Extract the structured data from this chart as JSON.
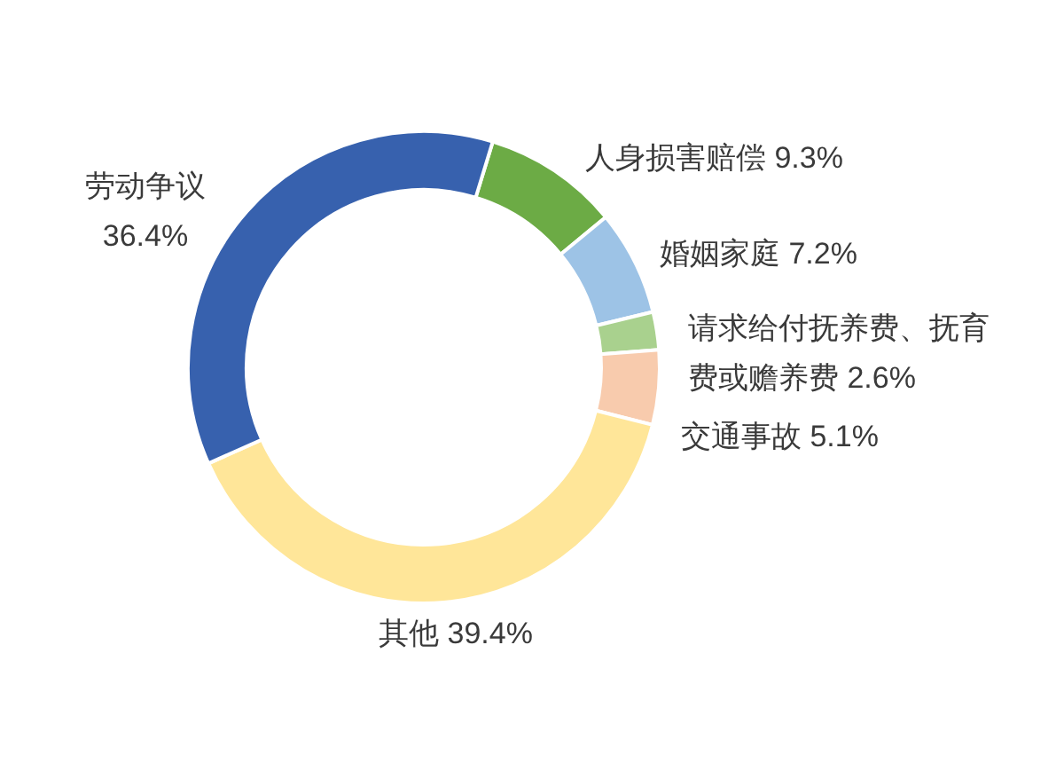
{
  "chart_data": {
    "type": "donut",
    "categories": [
      "人身损害赔偿",
      "婚姻家庭",
      "请求给付抚养费、抚育费或赡养费",
      "交通事故",
      "其他",
      "劳动争议"
    ],
    "values": [
      9.3,
      7.2,
      2.6,
      5.1,
      39.4,
      36.4
    ],
    "value_labels": [
      "9.3%",
      "7.2%",
      "2.6%",
      "5.1%",
      "39.4%",
      "36.4%"
    ],
    "colors": [
      "#6cab45",
      "#9dc3e6",
      "#a9d18e",
      "#f8cbad",
      "#ffe699",
      "#3761ae"
    ]
  }
}
